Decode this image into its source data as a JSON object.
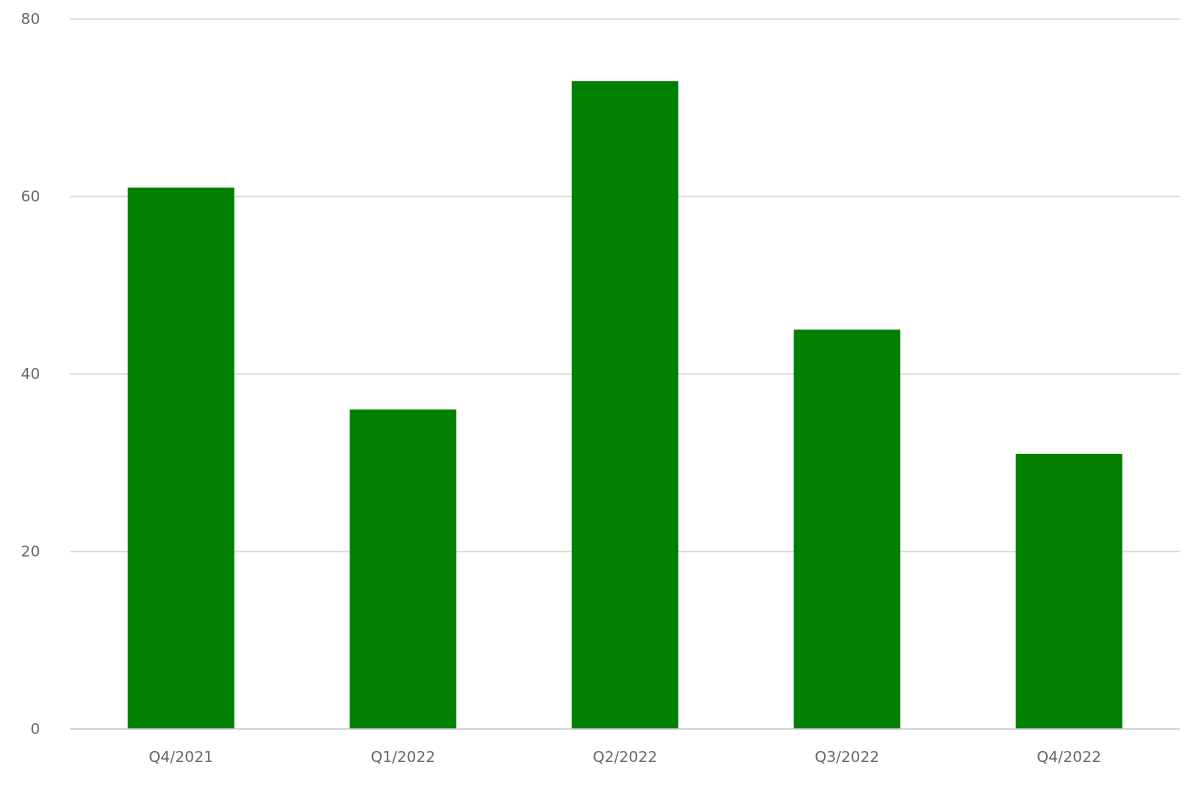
{
  "chart_data": {
    "type": "bar",
    "categories": [
      "Q4/2021",
      "Q1/2022",
      "Q2/2022",
      "Q3/2022",
      "Q4/2022"
    ],
    "series": [
      {
        "values": [
          61,
          36,
          73,
          45,
          31
        ],
        "color": "#007f00"
      }
    ],
    "ylim": [
      0,
      80
    ],
    "yticks": [
      0,
      20,
      40,
      60,
      80
    ],
    "grid": true,
    "title": "",
    "xlabel": "",
    "ylabel": ""
  }
}
